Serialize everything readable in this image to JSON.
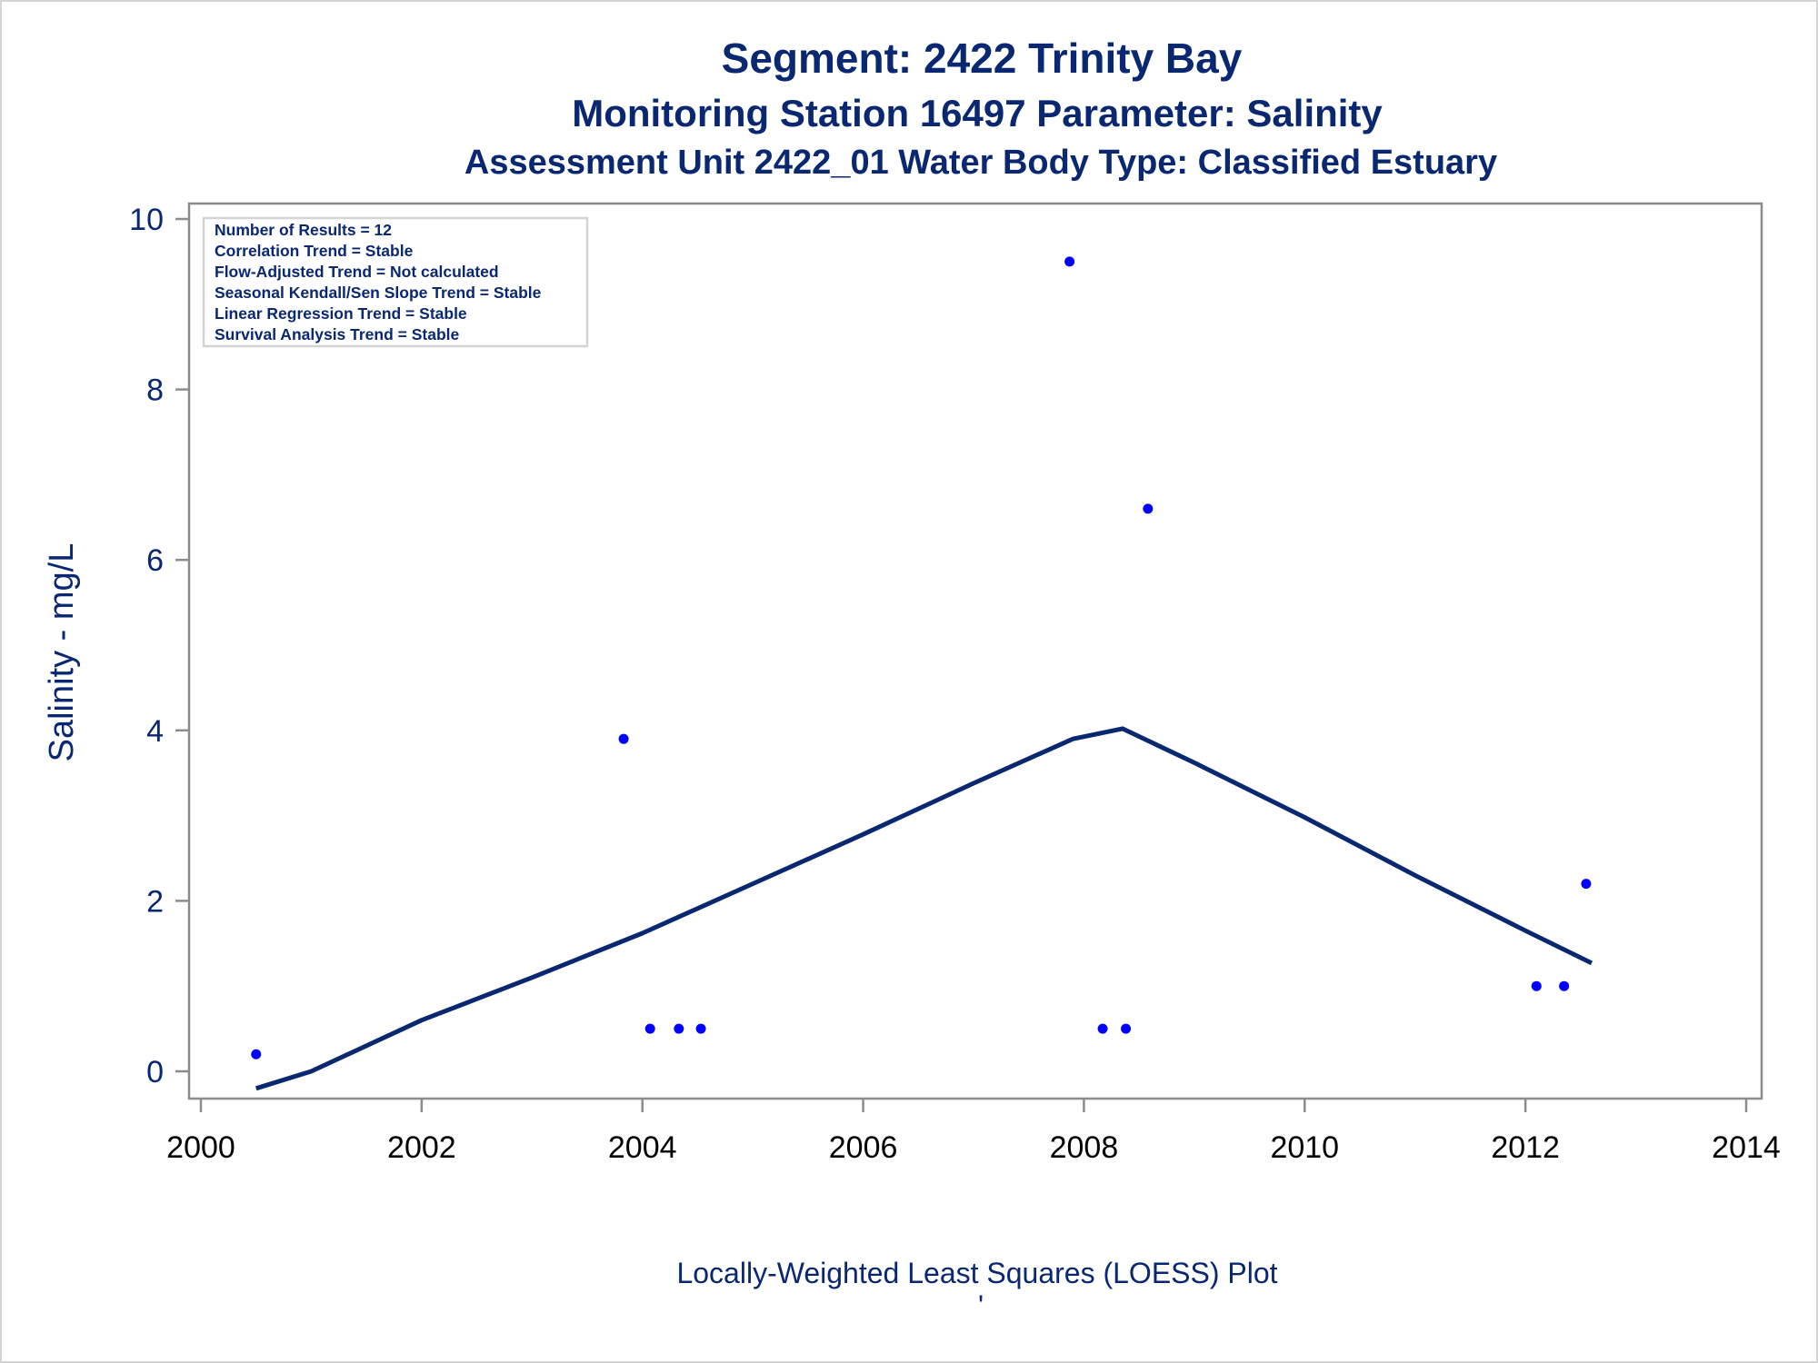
{
  "titles": {
    "line1": "Segment: 2422  Trinity Bay",
    "line2": "Monitoring Station 16497 Parameter: Salinity",
    "line3": "Assessment Unit 2422_01   Water Body Type: Classified Estuary"
  },
  "inset_lines": [
    "Number of Results = 12",
    "Correlation Trend = Stable",
    "Flow-Adjusted Trend = Not calculated",
    "Seasonal Kendall/Sen Slope Trend = Stable",
    "Linear Regression Trend = Stable",
    "Survival Analysis Trend = Stable"
  ],
  "footnote": "Locally-Weighted Least Squares (LOESS) Plot",
  "footnote_mark": "'",
  "colors": {
    "text": "#0a2872",
    "points": "#0000ff",
    "line": "#0a2872",
    "axis": "#8c8c8c",
    "frame": "#d4d4d4"
  },
  "chart_data": {
    "type": "scatter",
    "title": "Segment: 2422  Trinity Bay",
    "xlabel": "",
    "ylabel": "Salinity - mg/L",
    "xlim": [
      2000,
      2014
    ],
    "ylim": [
      0,
      10
    ],
    "xticks": [
      2000,
      2002,
      2004,
      2006,
      2008,
      2010,
      2012,
      2014
    ],
    "yticks": [
      0,
      2,
      4,
      6,
      8,
      10
    ],
    "grid": false,
    "points": [
      {
        "x": 2000.5,
        "y": 0.2
      },
      {
        "x": 2003.83,
        "y": 3.9
      },
      {
        "x": 2004.07,
        "y": 0.5
      },
      {
        "x": 2004.33,
        "y": 0.5
      },
      {
        "x": 2004.53,
        "y": 0.5
      },
      {
        "x": 2007.87,
        "y": 9.5
      },
      {
        "x": 2008.17,
        "y": 0.5
      },
      {
        "x": 2008.38,
        "y": 0.5
      },
      {
        "x": 2008.58,
        "y": 6.6
      },
      {
        "x": 2012.1,
        "y": 1.0
      },
      {
        "x": 2012.35,
        "y": 1.0
      },
      {
        "x": 2012.55,
        "y": 2.2
      }
    ],
    "loess": [
      {
        "x": 2000.5,
        "y": -0.2
      },
      {
        "x": 2001.0,
        "y": 0.0
      },
      {
        "x": 2002.0,
        "y": 0.6
      },
      {
        "x": 2003.0,
        "y": 1.1
      },
      {
        "x": 2004.0,
        "y": 1.62
      },
      {
        "x": 2005.0,
        "y": 2.2
      },
      {
        "x": 2006.0,
        "y": 2.78
      },
      {
        "x": 2007.0,
        "y": 3.38
      },
      {
        "x": 2007.9,
        "y": 3.9
      },
      {
        "x": 2008.35,
        "y": 4.02
      },
      {
        "x": 2009.0,
        "y": 3.62
      },
      {
        "x": 2010.0,
        "y": 2.98
      },
      {
        "x": 2011.0,
        "y": 2.3
      },
      {
        "x": 2012.0,
        "y": 1.65
      },
      {
        "x": 2012.6,
        "y": 1.27
      }
    ]
  }
}
